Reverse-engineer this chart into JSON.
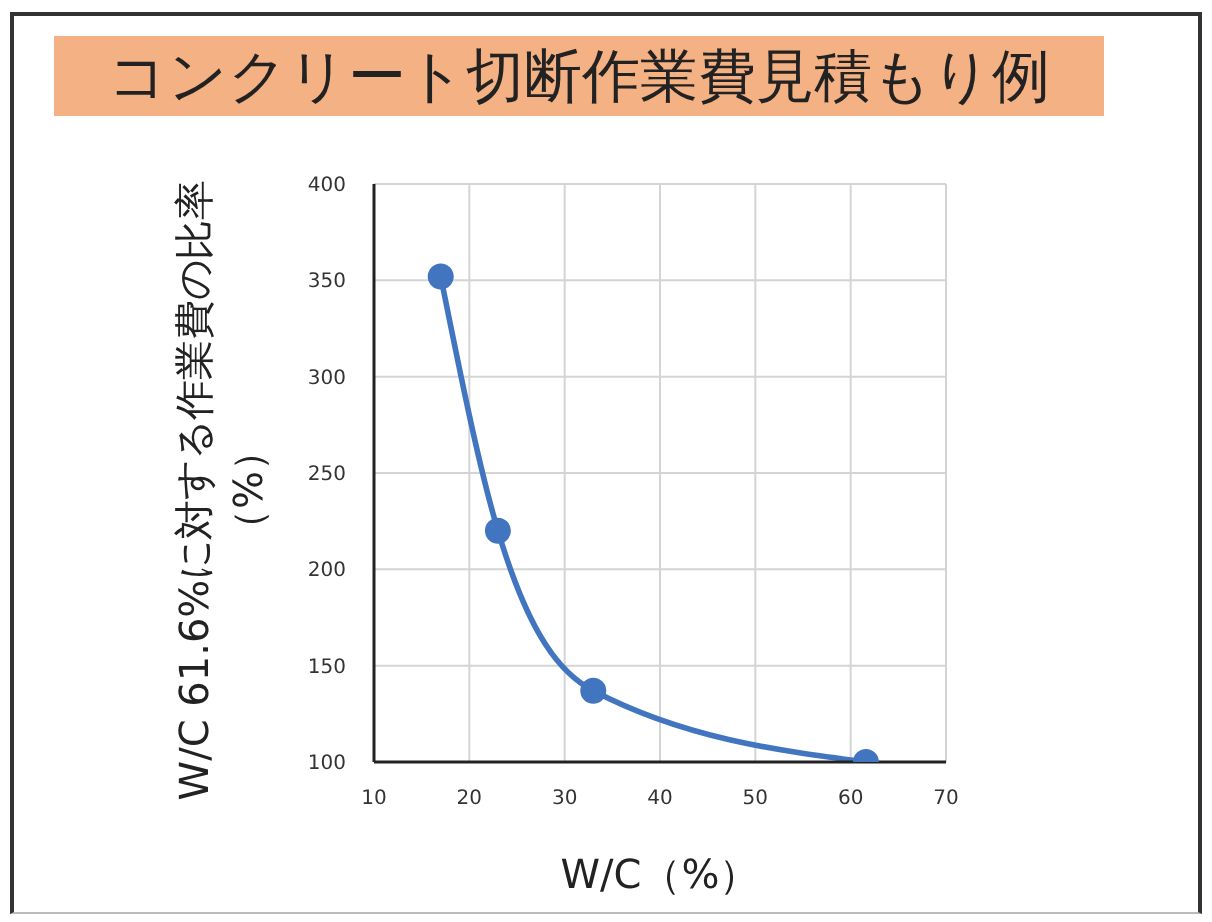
{
  "chart_data": {
    "type": "line",
    "title": "コンクリート切断作業費見積もり例",
    "xlabel": "W/C（%）",
    "ylabel": "W/C 61.6%に対する作業費の比率（%）",
    "x": [
      17,
      23,
      33,
      61.6
    ],
    "series": [
      {
        "color": "#4275c0",
        "values": [
          352,
          220,
          137,
          100
        ]
      }
    ],
    "xlim": [
      10,
      70
    ],
    "xticks": [
      10,
      20,
      30,
      40,
      50,
      60,
      70
    ],
    "ylim": [
      100,
      400
    ],
    "yticks": [
      100,
      150,
      200,
      250,
      300,
      350,
      400
    ],
    "grid": true,
    "marker": "circle",
    "line_style": "solid"
  }
}
